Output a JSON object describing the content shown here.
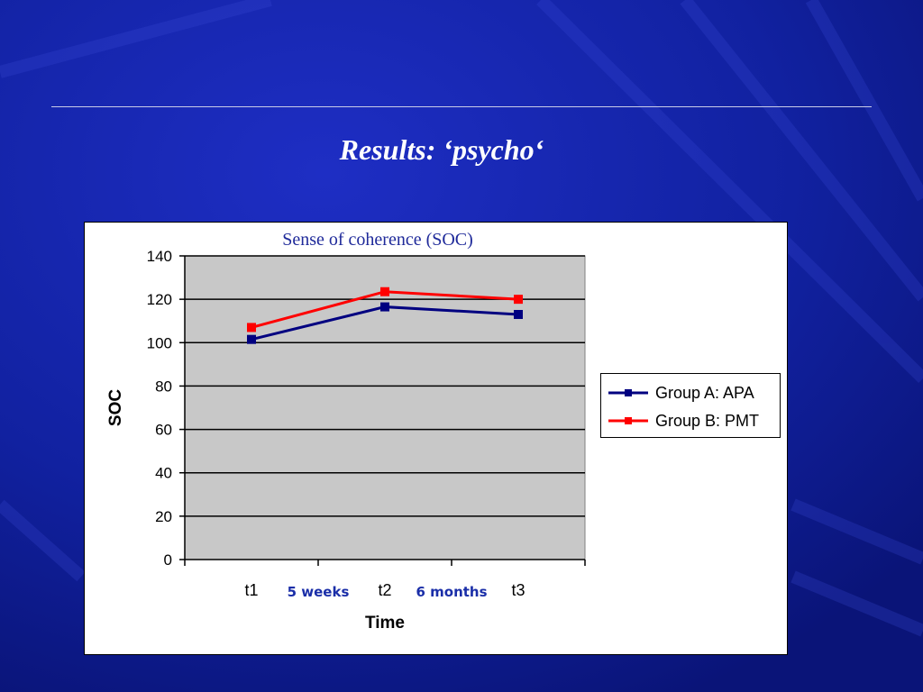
{
  "slide": {
    "title": "Results: ‘psycho‘",
    "background_color": "#0f1a8c"
  },
  "chart_data": {
    "type": "line",
    "title": "Sense of coherence (SOC)",
    "title_color": "#1f2a9a",
    "xlabel": "Time",
    "ylabel": "SOC",
    "categories": [
      "t1",
      "t2",
      "t3"
    ],
    "interval_labels": [
      "5 weeks",
      "6 months"
    ],
    "interval_label_color": "#1a2ea8",
    "ylim": [
      0,
      140
    ],
    "yticks": [
      "0",
      "20",
      "40",
      "60",
      "80",
      "100",
      "120",
      "140"
    ],
    "plot_background": "#c8c8c8",
    "grid": true,
    "legend_position": "right",
    "series": [
      {
        "name": "Group A: APA",
        "color": "#000080",
        "values": [
          101.5,
          116.5,
          113
        ]
      },
      {
        "name": "Group B: PMT",
        "color": "#ff0000",
        "values": [
          107,
          123.5,
          120
        ]
      }
    ]
  }
}
